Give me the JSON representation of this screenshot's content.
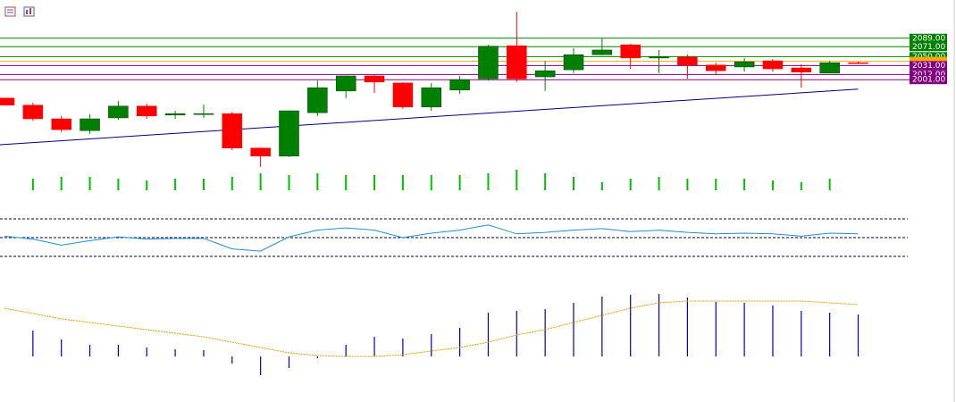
{
  "chart_data": {
    "type": "candlestick",
    "open": [
      1962,
      1947,
      1918,
      1893,
      1920,
      1945,
      1926,
      1928,
      1929,
      1856,
      1839,
      1931,
      1977,
      2009,
      1994,
      1943,
      1979,
      2003,
      2073,
      2007,
      2022,
      2054,
      2075,
      2047,
      2049,
      2032,
      2028,
      2041,
      2026,
      2015,
      2037
    ],
    "high": [
      1962,
      1952,
      1924,
      1928,
      1956,
      1950,
      1935,
      1948,
      1933,
      1857,
      1935,
      1999,
      2009,
      2011,
      1996,
      1994,
      2009,
      2075,
      2145,
      2041,
      2068,
      2089,
      2077,
      2064,
      2054,
      2037,
      2047,
      2045,
      2034,
      2041,
      2039
    ],
    "low": [
      1947,
      1914,
      1890,
      1886,
      1916,
      1918,
      1918,
      1920,
      1852,
      1816,
      1837,
      1924,
      1962,
      1973,
      1939,
      1935,
      1971,
      1999,
      1996,
      1977,
      2015,
      2053,
      2024,
      2015,
      2003,
      2011,
      2018,
      2018,
      1984,
      2015,
      2034
    ],
    "close": [
      1947,
      1918,
      1895,
      1918,
      1945,
      1924,
      1929,
      1929,
      1856,
      1839,
      1935,
      1984,
      2009,
      1996,
      1943,
      1984,
      2001,
      2072,
      2003,
      2020,
      2054,
      2064,
      2047,
      2049,
      2032,
      2020,
      2039,
      2024,
      2017,
      2037,
      2036
    ],
    "up_color": "#008000",
    "down_color": "#ff0000",
    "ylim": [
      1810,
      2170
    ],
    "levels": [
      {
        "value": 2089,
        "label": "2089.00",
        "color": "#008000"
      },
      {
        "value": 2071,
        "label": "2071.00",
        "color": "#008000"
      },
      {
        "value": 2050,
        "label": "2050.00",
        "color": "#008000"
      },
      {
        "value": 2040,
        "label": null,
        "color": "#ffa500"
      },
      {
        "value": 2031,
        "label": "2031.00",
        "color": "#800080"
      },
      {
        "value": 2012,
        "label": "2012.00",
        "color": "#800080"
      },
      {
        "value": 2001,
        "label": "2001.00",
        "color": "#800080"
      }
    ],
    "trendline": {
      "values": [
        1863,
        1981
      ],
      "color": "#000080"
    },
    "volume": {
      "values": [
        null,
        13,
        15,
        15,
        13,
        11,
        13,
        13,
        15,
        19,
        17,
        19,
        17,
        17,
        17,
        17,
        17,
        19,
        23,
        19,
        15,
        9,
        13,
        15,
        13,
        13,
        13,
        11,
        9,
        13,
        null
      ],
      "color": "#00c000",
      "ylim": [
        0,
        30
      ]
    },
    "oscillator": {
      "values": [
        52,
        48,
        40,
        46,
        51,
        48,
        49,
        49,
        35,
        32,
        51,
        60,
        63,
        60,
        50,
        56,
        60,
        67,
        55,
        57,
        60,
        62,
        58,
        60,
        57,
        55,
        56,
        55,
        52,
        56,
        55
      ],
      "levels": [
        75,
        50,
        25
      ],
      "color": "#1e90d0",
      "ylim": [
        0,
        100
      ]
    },
    "histogram": {
      "values": [
        null,
        29,
        19,
        13,
        13,
        10,
        8,
        7,
        -8,
        -21,
        -13,
        -2,
        13,
        22,
        20,
        25,
        32,
        49,
        51,
        53,
        60,
        67,
        69,
        70,
        66,
        61,
        60,
        57,
        51,
        49,
        47
      ],
      "color": "#0000c0",
      "signal": [
        54,
        48,
        42,
        38,
        34,
        30,
        26,
        22,
        16,
        10,
        4,
        1,
        0,
        0,
        2,
        6,
        10,
        16,
        24,
        30,
        38,
        46,
        54,
        60,
        62,
        62,
        62,
        62,
        62,
        60,
        58
      ],
      "signal_color": "#e0a000",
      "ylim": [
        -30,
        80
      ]
    }
  }
}
